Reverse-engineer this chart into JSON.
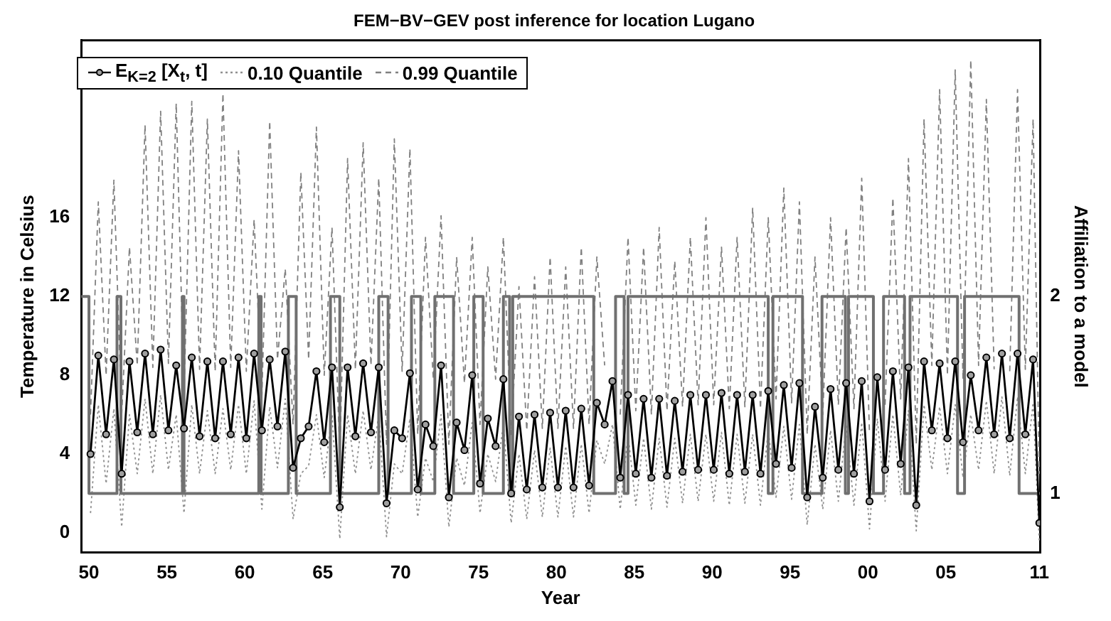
{
  "chart_data": {
    "type": "line",
    "title": "FEM−BV−GEV post inference for location Lugano",
    "xlabel": "Year",
    "ylabel": "Temperature in Celsius",
    "y2label": "Affiliation to a model",
    "x": [
      1950.1,
      1950.6,
      1951.1,
      1951.6,
      1952.1,
      1952.6,
      1953.1,
      1953.6,
      1954.1,
      1954.6,
      1955.1,
      1955.6,
      1956.1,
      1956.6,
      1957.1,
      1957.6,
      1958.1,
      1958.6,
      1959.1,
      1959.6,
      1960.1,
      1960.6,
      1961.1,
      1961.6,
      1962.1,
      1962.6,
      1963.1,
      1963.6,
      1964.1,
      1964.6,
      1965.1,
      1965.6,
      1966.1,
      1966.6,
      1967.1,
      1967.6,
      1968.1,
      1968.6,
      1969.1,
      1969.6,
      1970.1,
      1970.6,
      1971.1,
      1971.6,
      1972.1,
      1972.6,
      1973.1,
      1973.6,
      1974.1,
      1974.6,
      1975.1,
      1975.6,
      1976.1,
      1976.6,
      1977.1,
      1977.6,
      1978.1,
      1978.6,
      1979.1,
      1979.6,
      1980.1,
      1980.6,
      1981.1,
      1981.6,
      1982.1,
      1982.6,
      1983.1,
      1983.6,
      1984.1,
      1984.6,
      1985.1,
      1985.6,
      1986.1,
      1986.6,
      1987.1,
      1987.6,
      1988.1,
      1988.6,
      1989.1,
      1989.6,
      1990.1,
      1990.6,
      1991.1,
      1991.6,
      1992.1,
      1992.6,
      1993.1,
      1993.6,
      1994.1,
      1994.6,
      1995.1,
      1995.6,
      1996.1,
      1996.6,
      1997.1,
      1997.6,
      1998.1,
      1998.6,
      1999.1,
      1999.6,
      2000.1,
      2000.6,
      2001.1,
      2001.6,
      2002.1,
      2002.6,
      2003.1,
      2003.6,
      2004.1,
      2004.6,
      2005.1,
      2005.6,
      2006.1,
      2006.6,
      2007.1,
      2007.6,
      2008.1,
      2008.6,
      2009.1,
      2009.6,
      2010.1,
      2010.6,
      2011.0
    ],
    "series": [
      {
        "name": "E$_{K=2}$ [X$_{t}$, t]",
        "color": "#000000",
        "marker": "circle",
        "line_style": "solid",
        "values": [
          4.0,
          9.0,
          5.0,
          8.8,
          3.0,
          8.7,
          5.1,
          9.1,
          5.0,
          9.3,
          5.2,
          8.5,
          5.3,
          8.9,
          4.9,
          8.7,
          4.8,
          8.7,
          5.0,
          8.9,
          4.8,
          9.1,
          5.2,
          8.8,
          5.4,
          9.2,
          3.3,
          4.8,
          5.4,
          8.2,
          4.6,
          8.4,
          1.3,
          8.4,
          4.9,
          8.6,
          5.1,
          8.4,
          1.5,
          5.2,
          4.8,
          8.1,
          2.2,
          5.5,
          4.4,
          8.5,
          1.8,
          5.6,
          4.2,
          8.0,
          2.5,
          5.8,
          4.4,
          7.8,
          2.0,
          5.9,
          2.2,
          6.0,
          2.3,
          6.1,
          2.3,
          6.2,
          2.3,
          6.3,
          2.4,
          6.6,
          5.5,
          7.7,
          2.8,
          7.0,
          3.0,
          6.8,
          2.8,
          6.8,
          2.9,
          6.7,
          3.1,
          7.0,
          3.2,
          7.0,
          3.2,
          7.1,
          3.0,
          7.0,
          3.1,
          7.0,
          3.0,
          7.2,
          3.5,
          7.5,
          3.3,
          7.6,
          1.8,
          6.4,
          2.8,
          7.3,
          3.2,
          7.6,
          3.0,
          7.7,
          1.6,
          7.9,
          3.2,
          8.2,
          3.5,
          8.4,
          1.4,
          8.7,
          5.2,
          8.6,
          4.8,
          8.7,
          4.6,
          8.0,
          5.2,
          8.9,
          5.0,
          9.1,
          4.8,
          9.1,
          5.0,
          8.8,
          0.5
        ]
      },
      {
        "name": "0.10 Quantile",
        "color": "#909090",
        "marker": "none",
        "line_style": "dotted",
        "values": [
          1.0,
          6.5,
          2.5,
          6.3,
          0.3,
          6.0,
          3.0,
          6.8,
          3.0,
          7.0,
          3.2,
          6.0,
          1.0,
          6.5,
          3.0,
          6.2,
          3.0,
          6.3,
          3.2,
          6.5,
          3.0,
          6.7,
          1.2,
          6.4,
          3.3,
          6.8,
          0.7,
          3.0,
          3.4,
          6.0,
          2.8,
          6.0,
          -0.3,
          6.0,
          3.0,
          6.2,
          3.2,
          6.0,
          -0.2,
          3.5,
          3.0,
          5.8,
          0.8,
          3.8,
          2.6,
          6.0,
          0.3,
          3.8,
          2.4,
          5.6,
          1.0,
          4.0,
          2.6,
          5.5,
          0.5,
          4.0,
          0.7,
          4.2,
          0.8,
          4.3,
          0.8,
          4.4,
          0.8,
          4.5,
          1.0,
          4.7,
          3.5,
          5.5,
          1.2,
          5.0,
          1.4,
          4.8,
          1.2,
          4.8,
          1.3,
          4.8,
          1.5,
          5.0,
          1.6,
          5.0,
          1.6,
          5.1,
          1.4,
          5.0,
          1.5,
          5.0,
          1.4,
          5.2,
          1.8,
          5.4,
          1.7,
          5.5,
          0.4,
          4.5,
          1.2,
          5.2,
          1.6,
          5.5,
          1.4,
          5.6,
          0.2,
          5.8,
          1.6,
          6.0,
          1.9,
          6.2,
          0.1,
          6.5,
          3.2,
          6.4,
          3.0,
          6.5,
          2.8,
          6.0,
          3.2,
          6.7,
          3.0,
          6.9,
          2.9,
          6.9,
          3.0,
          6.6,
          -0.5
        ]
      },
      {
        "name": "0.99 Quantile",
        "color": "#808080",
        "marker": "none",
        "line_style": "dashed",
        "values": [
          6.0,
          16.8,
          8.0,
          17.9,
          6.0,
          14.5,
          8.5,
          20.7,
          8.4,
          21.4,
          8.6,
          21.8,
          7.0,
          21.9,
          8.3,
          21.0,
          8.2,
          22.3,
          8.4,
          19.4,
          8.2,
          15.9,
          7.0,
          20.9,
          8.8,
          13.4,
          5.5,
          18.3,
          8.8,
          20.6,
          8.0,
          15.5,
          4.0,
          19.0,
          8.3,
          19.8,
          8.5,
          18.0,
          4.5,
          20.0,
          8.2,
          19.5,
          5.0,
          15.0,
          7.8,
          16.1,
          4.5,
          14.0,
          7.6,
          15.0,
          5.5,
          13.5,
          7.8,
          15.0,
          5.0,
          12.5,
          5.2,
          13.0,
          5.3,
          14.0,
          5.3,
          13.5,
          5.3,
          14.5,
          5.5,
          14.0,
          8.5,
          null,
          6.0,
          15.0,
          6.2,
          14.5,
          6.0,
          15.5,
          6.2,
          13.8,
          6.4,
          15.0,
          6.5,
          16.0,
          6.5,
          14.5,
          6.3,
          15.0,
          6.4,
          16.5,
          6.3,
          16.0,
          6.8,
          17.5,
          6.6,
          16.8,
          5.0,
          14.0,
          6.0,
          16.0,
          6.5,
          15.5,
          6.3,
          18.0,
          5.0,
          null,
          6.5,
          17.0,
          6.8,
          19.0,
          4.5,
          21.0,
          8.5,
          22.5,
          8.0,
          23.5,
          7.8,
          24.0,
          8.5,
          22.0,
          8.3,
          null,
          8.2,
          22.5,
          8.3,
          21.0,
          3.0
        ]
      },
      {
        "type": "step",
        "axis": "y2",
        "color": "#707070",
        "marker": "none",
        "line_style": "solid",
        "x": [
          1949.5,
          1950.0,
          1951.8,
          1952.05,
          1956.0,
          1956.1,
          1960.9,
          1961.05,
          1962.8,
          1963.3,
          1965.5,
          1966.1,
          1968.6,
          1969.2,
          1970.7,
          1971.3,
          1972.2,
          1973.4,
          1974.7,
          1975.3,
          1976.6,
          1977.0,
          1977.2,
          1982.4,
          1983.8,
          1984.35,
          1984.6,
          1993.6,
          1993.9,
          1995.8,
          1997.05,
          1998.55,
          1998.75,
          2000.35,
          2001.0,
          2002.35,
          2002.7,
          2005.75,
          2006.2,
          2009.7,
          2011.05
        ],
        "values": [
          2,
          1,
          2,
          1,
          2,
          1,
          2,
          1,
          2,
          1,
          2,
          1,
          2,
          1,
          2,
          1,
          2,
          1,
          2,
          1,
          2,
          1,
          2,
          1,
          2,
          1,
          2,
          1,
          2,
          1,
          2,
          1,
          2,
          1,
          2,
          1,
          2,
          1,
          2,
          1,
          1
        ]
      }
    ],
    "xlim": [
      1949.5,
      2011.05
    ],
    "xticks": [
      {
        "value": 1950,
        "label": "50"
      },
      {
        "value": 1955,
        "label": "55"
      },
      {
        "value": 1960,
        "label": "60"
      },
      {
        "value": 1965,
        "label": "65"
      },
      {
        "value": 1970,
        "label": "70"
      },
      {
        "value": 1975,
        "label": "75"
      },
      {
        "value": 1980,
        "label": "80"
      },
      {
        "value": 1985,
        "label": "85"
      },
      {
        "value": 1990,
        "label": "90"
      },
      {
        "value": 1995,
        "label": "95"
      },
      {
        "value": 2000,
        "label": "00"
      },
      {
        "value": 2005,
        "label": "05"
      },
      {
        "value": 2011,
        "label": "11"
      }
    ],
    "ylim": [
      -1,
      25
    ],
    "yticks": [
      0,
      4,
      8,
      12,
      16
    ],
    "y2lim": [
      0.7,
      3.3
    ],
    "y2ticks": [
      1,
      2
    ],
    "grid": false,
    "legend": "top left"
  }
}
